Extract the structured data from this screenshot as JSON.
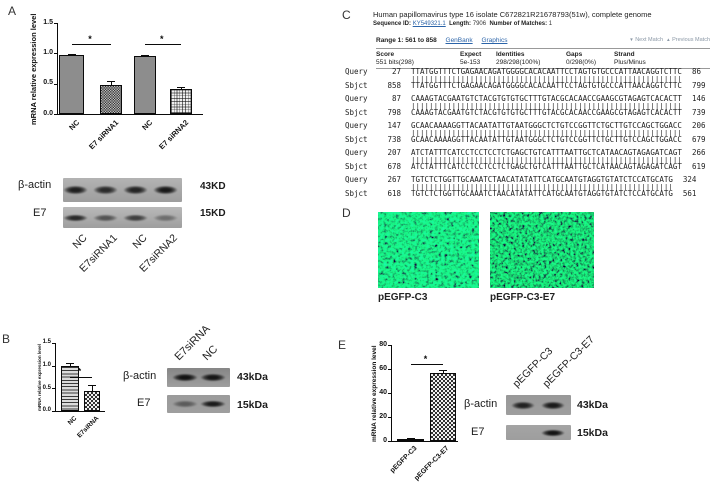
{
  "panel_labels": {
    "A": "A",
    "B": "B",
    "C": "C",
    "D": "D",
    "E": "E"
  },
  "chart_data": [
    {
      "id": "A",
      "type": "bar",
      "title": "",
      "ylabel": "mRNA relative expression level",
      "xlabel": "",
      "categories": [
        "NC",
        "E7 siRNA1",
        "NC",
        "E7 siRNA2"
      ],
      "values": [
        0.97,
        0.48,
        0.96,
        0.41
      ],
      "errors": [
        0.02,
        0.06,
        0.02,
        0.04
      ],
      "ytick_labels": [
        "0.0",
        "0.5",
        "1.0",
        "1.5"
      ],
      "ylim": [
        0,
        1.5
      ],
      "grid": false,
      "legend": "none",
      "patterns": [
        "solid",
        "dots",
        "solid",
        "grid"
      ],
      "significance": [
        {
          "between": [
            0,
            1
          ],
          "label": "*"
        },
        {
          "between": [
            2,
            3
          ],
          "label": "*"
        }
      ]
    },
    {
      "id": "B",
      "type": "bar",
      "title": "",
      "ylabel": "mRNA relative expression level",
      "xlabel": "",
      "categories": [
        "NC",
        "E7siRNA"
      ],
      "values": [
        1.0,
        0.44
      ],
      "errors": [
        0.06,
        0.13
      ],
      "ytick_labels": [
        "0.0",
        "0.5",
        "1.0",
        "1.5"
      ],
      "ylim": [
        0,
        1.5
      ],
      "grid": false,
      "legend": "none",
      "patterns": [
        "hlines",
        "check"
      ],
      "significance": [
        {
          "between": [
            0,
            1
          ],
          "label": "*"
        }
      ]
    },
    {
      "id": "E",
      "type": "bar",
      "title": "",
      "ylabel": "mRNA relative expression level",
      "xlabel": "",
      "categories": [
        "pEGFP-C3",
        "pEGFP-C3-E7"
      ],
      "values": [
        1.5,
        57
      ],
      "errors": [
        0.8,
        1.8
      ],
      "ytick_labels": [
        "0",
        "20",
        "40",
        "60",
        "80"
      ],
      "ylim": [
        0,
        80
      ],
      "grid": false,
      "legend": "none",
      "patterns": [
        "solid",
        "check"
      ],
      "significance": [
        {
          "between": [
            0,
            1
          ],
          "label": "*"
        }
      ]
    }
  ],
  "blots": [
    {
      "id": "A",
      "rows": [
        {
          "protein": "β-actin",
          "mw": "43KD",
          "bands": [
            0.88,
            0.8,
            0.85,
            0.92
          ]
        },
        {
          "protein": "E7",
          "mw": "15KD",
          "bands": [
            0.82,
            0.55,
            0.68,
            0.38
          ]
        }
      ],
      "lanes": [
        "NC",
        "E7siRNA1",
        "NC",
        "E7siRNA2"
      ],
      "lane_labels_position": "below"
    },
    {
      "id": "B",
      "rows": [
        {
          "protein": "β-actin",
          "mw": "43kDa",
          "bands": [
            0.95,
            0.92
          ]
        },
        {
          "protein": "E7",
          "mw": "15kDa",
          "bands": [
            0.45,
            0.9
          ]
        }
      ],
      "lanes": [
        "E7siRNA",
        "NC"
      ],
      "lane_labels_position": "above"
    },
    {
      "id": "E",
      "rows": [
        {
          "protein": "β-actin",
          "mw": "43kDa",
          "bands": [
            0.85,
            0.9
          ]
        },
        {
          "protein": "E7",
          "mw": "15kDa",
          "bands": [
            0,
            0.95
          ]
        }
      ],
      "lanes": [
        "pEGFP-C3",
        "pEGFP-C3-E7"
      ],
      "lane_labels_position": "above"
    }
  ],
  "blast": {
    "title": "Human papillomavirus type 16 isolate C672821R21678793(51w), complete genome",
    "sequence_id_label": "Sequence ID:",
    "sequence_id": "KY549321.1",
    "length_label": "Length:",
    "length": "7906",
    "matches_label": "Number of Matches:",
    "matches": "1",
    "range_label": "Range 1: 561 to 858",
    "genbank_link": "GenBank",
    "graphics_link": "Graphics",
    "next_match": "Next Match",
    "previous_match": "Previous Match",
    "stats_headers": [
      "Score",
      "Expect",
      "Identities",
      "Gaps",
      "Strand"
    ],
    "stats_values": [
      "551 bits(298)",
      "5e-153",
      "298/298(100%)",
      "0/298(0%)",
      "Plus/Minus"
    ],
    "query_label": "Query",
    "sbjct_label": "Sbjct",
    "alignment": [
      {
        "q_start": "27",
        "q_end": "86",
        "s_start": "858",
        "s_end": "799",
        "seq": "TTATGGTTTCTGAGAACAGATGGGGCACACAATTCCTAGTGTGCCCATTAACAGGTCTTC"
      },
      {
        "q_start": "87",
        "q_end": "146",
        "s_start": "798",
        "s_end": "739",
        "seq": "CAAAGTACGAATGTCTACGTGTGTGCTTTGTACGCACAACCGAAGCGTAGAGTCACACTT"
      },
      {
        "q_start": "147",
        "q_end": "206",
        "s_start": "738",
        "s_end": "679",
        "seq": "GCAACAAAAGGTTACAATATTGTAATGGGCTCTGTCCGGTTCTGCTTGTCCAGCTGGACC"
      },
      {
        "q_start": "207",
        "q_end": "266",
        "s_start": "678",
        "s_end": "619",
        "seq": "ATCTATTTCATCCTCCTCCTCTGAGCTGTCATTTAATTGCTCATAACAGTAGAGATCAGT"
      },
      {
        "q_start": "267",
        "q_end": "324",
        "s_start": "618",
        "s_end": "561",
        "seq": "TGTCTCTGGTTGCAAATCTAACATATATTCATGCAATGTAGGTGTATCTCCATGCATG"
      }
    ]
  },
  "fluorescence": {
    "images": [
      {
        "caption": "pEGFP-C3"
      },
      {
        "caption": "pEGFP-C3-E7"
      }
    ]
  },
  "colors": {
    "link_blue": "#2b64a9",
    "nav_gray": "#8b98a6",
    "bar_gray": "#8d8d8d"
  }
}
